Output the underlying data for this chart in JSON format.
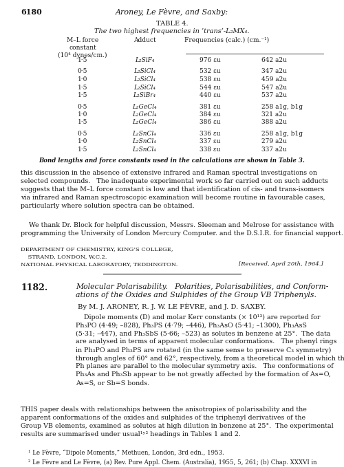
{
  "bg_color": "#ffffff",
  "text_color": "#1a1a1a",
  "page_number": "6180",
  "header_title": "Aroney, Le Fèvre, and Saxby:",
  "table_title": "TABLE 4.",
  "table_subtitle": "The two highest frequencies in trans-L₂MX₄.",
  "table_rows": [
    [
      "1·5",
      "L₂SiF₄",
      "976 εu",
      "642 a2u"
    ],
    [
      "0·5",
      "L₂SiCl₄",
      "532 εu",
      "347 a2u"
    ],
    [
      "1·0",
      "L₂SiCl₄",
      "538 εu",
      "459 a2u"
    ],
    [
      "1·5",
      "L₂SiCl₄",
      "544 εu",
      "547 a2u"
    ],
    [
      "1·5",
      "L₂SiBr₄",
      "440 εu",
      "537 a2u"
    ],
    [
      "0·5",
      "L₂GeCl₄",
      "381 εu",
      "258 a1g, b1g"
    ],
    [
      "1·0",
      "L₂GeCl₄",
      "384 εu",
      "321 a2u"
    ],
    [
      "1·5",
      "L₂GeCl₄",
      "386 εu",
      "388 a2u"
    ],
    [
      "0·5",
      "L₂SnCl₄",
      "336 εu",
      "258 a1g, b1g"
    ],
    [
      "1·0",
      "L₂SnCl₄",
      "337 εu",
      "279 a2u"
    ],
    [
      "1·5",
      "L₂SnCl₄",
      "338 εu",
      "337 a2u"
    ]
  ],
  "table_footnote": "Bond lengths and force constants used in the calculations are shown in Table 3.",
  "section_num": "1182.",
  "section_title_line1": "Molecular Polarisability.   Polarities, Polarisabilities, and Conform-",
  "section_title_line2": "ations of the Oxides and Sulphides of the Group VB Triphenyls.",
  "authors_line": "By M. J. ARONEY, R. J. W. LE FÈVRE, and J. D. SAXBY.",
  "address1": "DEPARTMENT OF CHEMISTRY, KING’S COLLEGE,",
  "address2": "STRAND, LONDON, W.C.2.",
  "address3": "NATIONAL PHYSICAL LABORATORY, TEDDINGTON.",
  "received": "[Received, April 20th, 1964.]"
}
